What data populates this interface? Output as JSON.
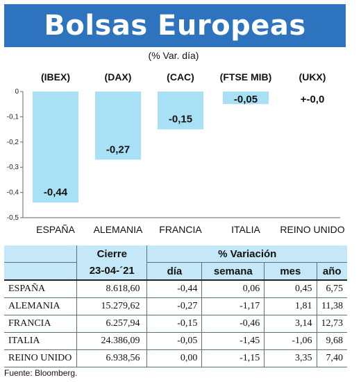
{
  "title": "Bolsas Europeas",
  "subtitle": "(% Var. día)",
  "colors": {
    "banner": "#2d73be",
    "bar": "#a8e1f6",
    "header_bg": "#c4e8f7"
  },
  "chart_data": {
    "type": "bar",
    "indices": [
      "(IBEX)",
      "(DAX)",
      "(CAC)",
      "(FTSE MIB)",
      "(UKX)"
    ],
    "categories": [
      "ESPAÑA",
      "ALEMANIA",
      "FRANCIA",
      "ITALIA",
      "REINO UNIDO"
    ],
    "values": [
      -0.44,
      -0.27,
      -0.15,
      -0.05,
      0.0
    ],
    "value_labels": [
      "-0,44",
      "-0,27",
      "-0,15",
      "-0,05",
      "+-0,0"
    ],
    "ylim": [
      -0.5,
      0
    ],
    "yticks": [
      0,
      -0.1,
      -0.2,
      -0.3,
      -0.4,
      -0.5
    ],
    "ytick_labels": [
      "0",
      "-0,1",
      "-0,2",
      "-0,3",
      "-0,4",
      "-0,5"
    ],
    "grid": false,
    "legend": "none"
  },
  "table": {
    "header_cierre": "Cierre",
    "header_variacion": "% Variación",
    "header_date": "23-04-´21",
    "header_dia": "día",
    "header_semana": "semana",
    "header_mes": "mes",
    "header_ano": "año",
    "rows": [
      {
        "name": "ESPAÑA",
        "cierre": "8.618,60",
        "dia": "-0,44",
        "semana": "0,06",
        "mes": "0,45",
        "ano": "6,75"
      },
      {
        "name": "ALEMANIA",
        "cierre": "15.279,62",
        "dia": "-0,27",
        "semana": "-1,17",
        "mes": "1,81",
        "ano": "11,38"
      },
      {
        "name": "FRANCIA",
        "cierre": "6.257,94",
        "dia": "-0,15",
        "semana": "-0,46",
        "mes": "3,14",
        "ano": "12,73"
      },
      {
        "name": "ITALIA",
        "cierre": "24.386,09",
        "dia": "-0,05",
        "semana": "-1,45",
        "mes": "-1,06",
        "ano": "9,68"
      },
      {
        "name": "REINO UNIDO",
        "cierre": "6.938,56",
        "dia": "0,00",
        "semana": "-1,15",
        "mes": "3,35",
        "ano": "7,40"
      }
    ]
  },
  "source": "Fuente: Bloomberg."
}
